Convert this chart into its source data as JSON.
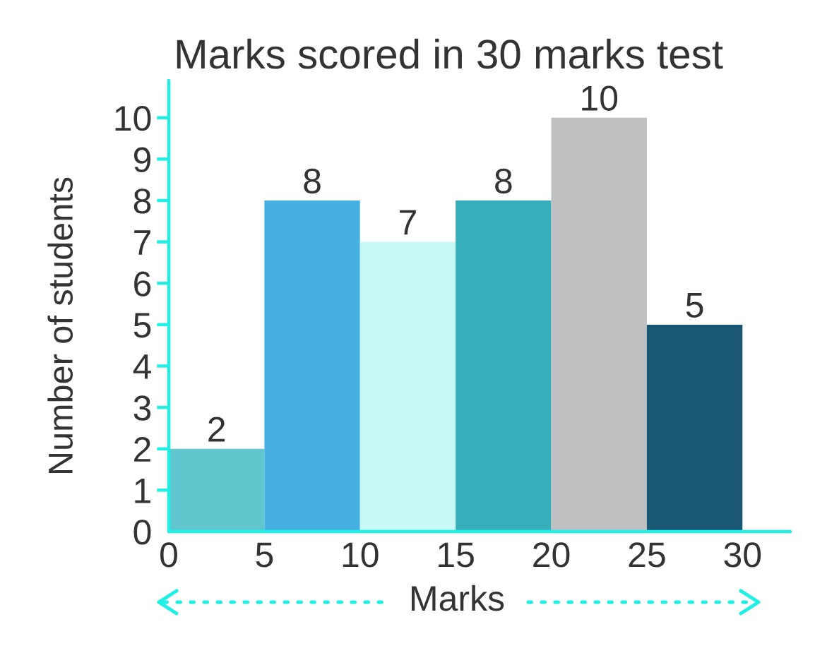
{
  "chart_data": {
    "type": "histogram",
    "title": "Marks scored in 30 marks test",
    "xlabel": "Marks",
    "ylabel": "Number of students",
    "bins": [
      0,
      5,
      10,
      15,
      20,
      25,
      30
    ],
    "values": [
      2,
      8,
      7,
      8,
      10,
      5
    ],
    "colors": [
      "#62c6ce",
      "#47b0e3",
      "#c8f9f7",
      "#36afbb",
      "#bebfc1",
      "#195774"
    ],
    "data_labels": true,
    "xlim": [
      0,
      32.5
    ],
    "ylim": [
      0,
      10.9
    ],
    "xticks": [
      0,
      5,
      10,
      15,
      20,
      25,
      30
    ],
    "yticks": [
      0,
      1,
      2,
      3,
      4,
      5,
      6,
      7,
      8,
      9,
      10
    ]
  }
}
